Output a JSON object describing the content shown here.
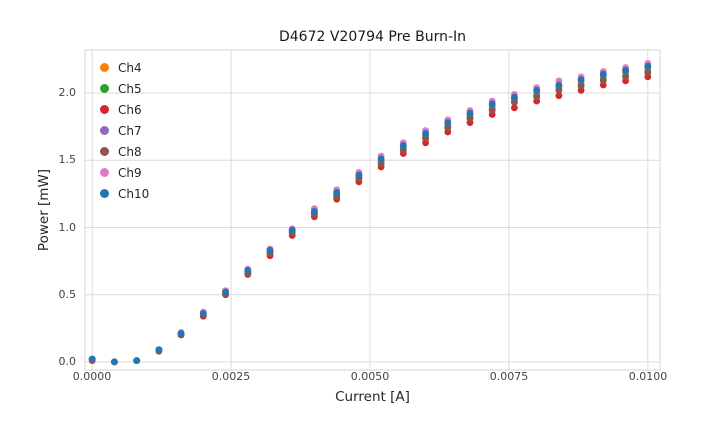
{
  "chart_data": {
    "type": "scatter",
    "title": "D4672 V20794 Pre Burn-In",
    "xlabel": "Current [A]",
    "ylabel": "Power [mW]",
    "xlim": [
      -0.00013,
      0.01022
    ],
    "ylim": [
      -0.06,
      2.32
    ],
    "grid": true,
    "legend_position": "upper-left",
    "xticks": [
      0.0,
      0.0025,
      0.005,
      0.0075,
      0.01
    ],
    "xtick_labels": [
      "0.0000",
      "0.0025",
      "0.0050",
      "0.0075",
      "0.0100"
    ],
    "yticks": [
      0.0,
      0.5,
      1.0,
      1.5,
      2.0
    ],
    "ytick_labels": [
      "0.0",
      "0.5",
      "1.0",
      "1.5",
      "2.0"
    ],
    "x": [
      0.0,
      0.0004,
      0.0008,
      0.0012,
      0.0016,
      0.002,
      0.0024,
      0.0028,
      0.0032,
      0.0036,
      0.004,
      0.0044,
      0.0048,
      0.0052,
      0.0056,
      0.006,
      0.0064,
      0.0068,
      0.0072,
      0.0076,
      0.008,
      0.0084,
      0.0088,
      0.0092,
      0.0096,
      0.01
    ],
    "series": [
      {
        "name": "Ch4",
        "color": "#ff7f0e",
        "values": [
          0.02,
          0.0,
          0.01,
          0.09,
          0.21,
          0.36,
          0.52,
          0.67,
          0.82,
          0.97,
          1.11,
          1.25,
          1.38,
          1.49,
          1.59,
          1.68,
          1.76,
          1.84,
          1.9,
          1.96,
          2.0,
          2.05,
          2.08,
          2.12,
          2.15,
          2.18
        ]
      },
      {
        "name": "Ch5",
        "color": "#2ca02c",
        "values": [
          0.02,
          0.0,
          0.01,
          0.09,
          0.21,
          0.35,
          0.51,
          0.66,
          0.81,
          0.96,
          1.1,
          1.24,
          1.37,
          1.48,
          1.58,
          1.67,
          1.75,
          1.82,
          1.88,
          1.94,
          1.98,
          2.03,
          2.06,
          2.1,
          2.13,
          2.16
        ]
      },
      {
        "name": "Ch6",
        "color": "#d62728",
        "values": [
          0.01,
          0.0,
          0.01,
          0.08,
          0.2,
          0.34,
          0.5,
          0.65,
          0.79,
          0.94,
          1.08,
          1.21,
          1.34,
          1.45,
          1.55,
          1.63,
          1.71,
          1.78,
          1.84,
          1.89,
          1.94,
          1.98,
          2.02,
          2.06,
          2.09,
          2.12
        ]
      },
      {
        "name": "Ch7",
        "color": "#9467bd",
        "values": [
          0.02,
          0.0,
          0.01,
          0.09,
          0.21,
          0.36,
          0.52,
          0.67,
          0.82,
          0.98,
          1.12,
          1.26,
          1.39,
          1.5,
          1.6,
          1.69,
          1.77,
          1.84,
          1.91,
          1.96,
          2.01,
          2.05,
          2.09,
          2.13,
          2.16,
          2.19
        ]
      },
      {
        "name": "Ch8",
        "color": "#8c564b",
        "values": [
          0.02,
          0.0,
          0.01,
          0.09,
          0.21,
          0.35,
          0.51,
          0.66,
          0.81,
          0.96,
          1.1,
          1.23,
          1.36,
          1.47,
          1.57,
          1.66,
          1.74,
          1.81,
          1.87,
          1.93,
          1.97,
          2.02,
          2.05,
          2.09,
          2.12,
          2.15
        ]
      },
      {
        "name": "Ch9",
        "color": "#e377c2",
        "values": [
          0.02,
          0.0,
          0.01,
          0.09,
          0.22,
          0.37,
          0.53,
          0.69,
          0.84,
          0.99,
          1.14,
          1.28,
          1.41,
          1.53,
          1.63,
          1.72,
          1.8,
          1.87,
          1.94,
          1.99,
          2.04,
          2.09,
          2.12,
          2.16,
          2.19,
          2.22
        ]
      },
      {
        "name": "Ch10",
        "color": "#1f77b4",
        "values": [
          0.02,
          0.0,
          0.01,
          0.09,
          0.21,
          0.36,
          0.52,
          0.68,
          0.83,
          0.98,
          1.12,
          1.26,
          1.39,
          1.51,
          1.61,
          1.7,
          1.78,
          1.85,
          1.92,
          1.97,
          2.02,
          2.06,
          2.1,
          2.14,
          2.17,
          2.2
        ]
      }
    ],
    "style": {
      "grid_color": "#dcdcdc",
      "spine_color": "#d4d4d4",
      "marker_radius": 3.4
    }
  }
}
